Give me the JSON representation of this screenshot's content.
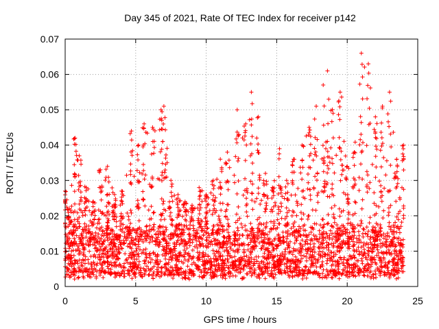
{
  "chart_data": {
    "type": "scatter",
    "title": "Day 345 of 2021, Rate Of TEC Index for receiver p142",
    "xlabel": "GPS time / hours",
    "ylabel": "ROTI / TECUs",
    "xlim": [
      0,
      25
    ],
    "ylim": [
      0,
      0.07
    ],
    "xticks": [
      0,
      5,
      10,
      15,
      20,
      25
    ],
    "yticks": [
      0,
      0.01,
      0.02,
      0.03,
      0.04,
      0.05,
      0.06,
      0.07
    ],
    "xtick_labels": [
      "0",
      "5",
      "10",
      "15",
      "20",
      "25"
    ],
    "ytick_labels": [
      "0",
      "0.01",
      "0.02",
      "0.03",
      "0.04",
      "0.05",
      "0.06",
      "0.07"
    ],
    "grid": true,
    "marker": "+",
    "color": "#ff0000",
    "data_x_range": [
      0,
      24
    ],
    "baseline_band": [
      0.003,
      0.017
    ],
    "envelope": [
      {
        "t": 0.0,
        "peak": 0.027
      },
      {
        "t": 0.3,
        "peak": 0.022
      },
      {
        "t": 0.7,
        "peak": 0.042
      },
      {
        "t": 1.0,
        "peak": 0.037
      },
      {
        "t": 1.5,
        "peak": 0.028
      },
      {
        "t": 2.0,
        "peak": 0.024
      },
      {
        "t": 2.5,
        "peak": 0.033
      },
      {
        "t": 3.0,
        "peak": 0.034
      },
      {
        "t": 3.5,
        "peak": 0.026
      },
      {
        "t": 4.0,
        "peak": 0.027
      },
      {
        "t": 4.7,
        "peak": 0.044
      },
      {
        "t": 5.2,
        "peak": 0.04
      },
      {
        "t": 5.6,
        "peak": 0.046
      },
      {
        "t": 6.2,
        "peak": 0.045
      },
      {
        "t": 6.8,
        "peak": 0.05
      },
      {
        "t": 7.0,
        "peak": 0.051
      },
      {
        "t": 7.5,
        "peak": 0.03
      },
      {
        "t": 8.0,
        "peak": 0.026
      },
      {
        "t": 8.5,
        "peak": 0.024
      },
      {
        "t": 9.0,
        "peak": 0.023
      },
      {
        "t": 9.5,
        "peak": 0.028
      },
      {
        "t": 10.0,
        "peak": 0.026
      },
      {
        "t": 10.5,
        "peak": 0.03
      },
      {
        "t": 11.0,
        "peak": 0.036
      },
      {
        "t": 11.5,
        "peak": 0.038
      },
      {
        "t": 12.2,
        "peak": 0.05
      },
      {
        "t": 12.8,
        "peak": 0.046
      },
      {
        "t": 13.2,
        "peak": 0.055
      },
      {
        "t": 13.7,
        "peak": 0.048
      },
      {
        "t": 14.2,
        "peak": 0.032
      },
      {
        "t": 14.7,
        "peak": 0.028
      },
      {
        "t": 15.2,
        "peak": 0.039
      },
      {
        "t": 15.7,
        "peak": 0.03
      },
      {
        "t": 16.2,
        "peak": 0.036
      },
      {
        "t": 16.8,
        "peak": 0.04
      },
      {
        "t": 17.3,
        "peak": 0.045
      },
      {
        "t": 17.8,
        "peak": 0.051
      },
      {
        "t": 18.3,
        "peak": 0.057
      },
      {
        "t": 18.6,
        "peak": 0.061
      },
      {
        "t": 19.0,
        "peak": 0.049
      },
      {
        "t": 19.5,
        "peak": 0.055
      },
      {
        "t": 20.0,
        "peak": 0.034
      },
      {
        "t": 20.5,
        "peak": 0.038
      },
      {
        "t": 21.0,
        "peak": 0.066
      },
      {
        "t": 21.5,
        "peak": 0.063
      },
      {
        "t": 22.0,
        "peak": 0.048
      },
      {
        "t": 22.5,
        "peak": 0.051
      },
      {
        "t": 23.0,
        "peak": 0.055
      },
      {
        "t": 23.5,
        "peak": 0.036
      },
      {
        "t": 24.0,
        "peak": 0.04
      }
    ]
  }
}
